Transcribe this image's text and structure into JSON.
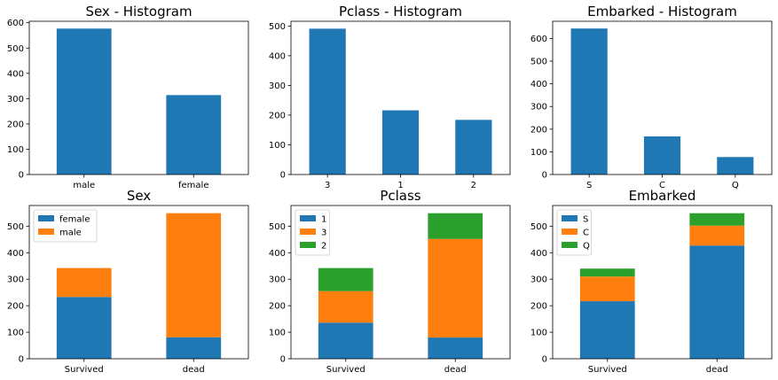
{
  "chart_data": [
    {
      "type": "bar",
      "title": "Sex - Histogram",
      "categories": [
        "male",
        "female"
      ],
      "values": [
        577,
        314
      ],
      "ylim": [
        0,
        606
      ],
      "yticks": [
        0,
        100,
        200,
        300,
        400,
        500,
        600
      ],
      "grid": false,
      "color": "#1f77b4"
    },
    {
      "type": "bar",
      "title": "Pclass - Histogram",
      "categories": [
        "3",
        "1",
        "2"
      ],
      "values": [
        491,
        216,
        184
      ],
      "ylim": [
        0,
        516
      ],
      "yticks": [
        0,
        100,
        200,
        300,
        400,
        500
      ],
      "grid": false,
      "color": "#1f77b4"
    },
    {
      "type": "bar",
      "title": "Embarked - Histogram",
      "categories": [
        "S",
        "C",
        "Q"
      ],
      "values": [
        644,
        168,
        77
      ],
      "ylim": [
        0,
        676
      ],
      "yticks": [
        0,
        100,
        200,
        300,
        400,
        500,
        600
      ],
      "grid": false,
      "color": "#1f77b4"
    },
    {
      "type": "bar",
      "stacked": true,
      "title": "Sex",
      "categories": [
        "Survived",
        "dead"
      ],
      "series": [
        {
          "name": "female",
          "values": [
            233,
            81
          ],
          "color": "#1f77b4"
        },
        {
          "name": "male",
          "values": [
            109,
            468
          ],
          "color": "#ff7f0e"
        }
      ],
      "ylim": [
        0,
        578
      ],
      "yticks": [
        0,
        100,
        200,
        300,
        400,
        500
      ],
      "legend": "top-left",
      "grid": false
    },
    {
      "type": "bar",
      "stacked": true,
      "title": "Pclass",
      "categories": [
        "Survived",
        "dead"
      ],
      "series": [
        {
          "name": "1",
          "values": [
            136,
            80
          ],
          "color": "#1f77b4"
        },
        {
          "name": "3",
          "values": [
            119,
            372
          ],
          "color": "#ff7f0e"
        },
        {
          "name": "2",
          "values": [
            87,
            97
          ],
          "color": "#2ca02c"
        }
      ],
      "ylim": [
        0,
        578
      ],
      "yticks": [
        0,
        100,
        200,
        300,
        400,
        500
      ],
      "legend": "top-left",
      "grid": false
    },
    {
      "type": "bar",
      "stacked": true,
      "title": "Embarked",
      "categories": [
        "Survived",
        "dead"
      ],
      "series": [
        {
          "name": "S",
          "values": [
            217,
            427
          ],
          "color": "#1f77b4"
        },
        {
          "name": "C",
          "values": [
            93,
            75
          ],
          "color": "#ff7f0e"
        },
        {
          "name": "Q",
          "values": [
            30,
            47
          ],
          "color": "#2ca02c"
        }
      ],
      "ylim": [
        0,
        578
      ],
      "yticks": [
        0,
        100,
        200,
        300,
        400,
        500
      ],
      "legend": "top-left",
      "grid": false
    }
  ]
}
